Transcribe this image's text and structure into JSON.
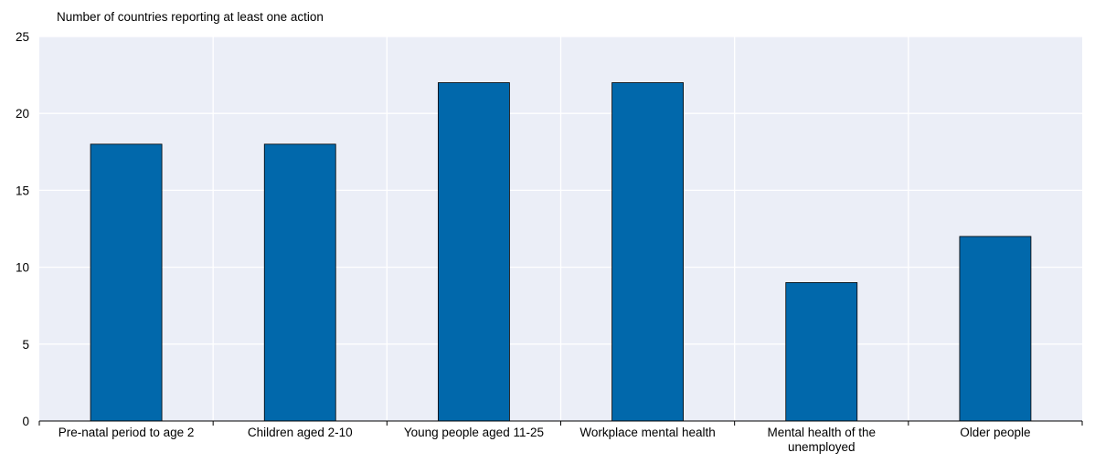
{
  "chart_data": {
    "type": "bar",
    "title": "",
    "ylabel": "Number of countries reporting at least one action",
    "xlabel": "",
    "categories": [
      "Pre-natal period to age 2",
      "Children aged 2-10",
      "Young people aged 11-25",
      "Workplace mental health",
      "Mental health of the unemployed",
      "Older people"
    ],
    "category_lines": [
      [
        "Pre-natal period to age 2"
      ],
      [
        "Children aged 2-10"
      ],
      [
        "Young people aged 11-25"
      ],
      [
        "Workplace mental health"
      ],
      [
        "Mental health of the",
        "unemployed"
      ],
      [
        "Older people"
      ]
    ],
    "values": [
      18,
      18,
      22,
      22,
      9,
      12
    ],
    "ylim": [
      0,
      25
    ],
    "yticks": [
      0,
      5,
      10,
      15,
      20,
      25
    ],
    "grid": true,
    "legend": "none"
  },
  "colors": {
    "bar": "#0168AB",
    "bar_stroke": "#000000",
    "plot_background": "#EBEEF7",
    "grid": "#FFFFFF",
    "axis": "#000000"
  }
}
